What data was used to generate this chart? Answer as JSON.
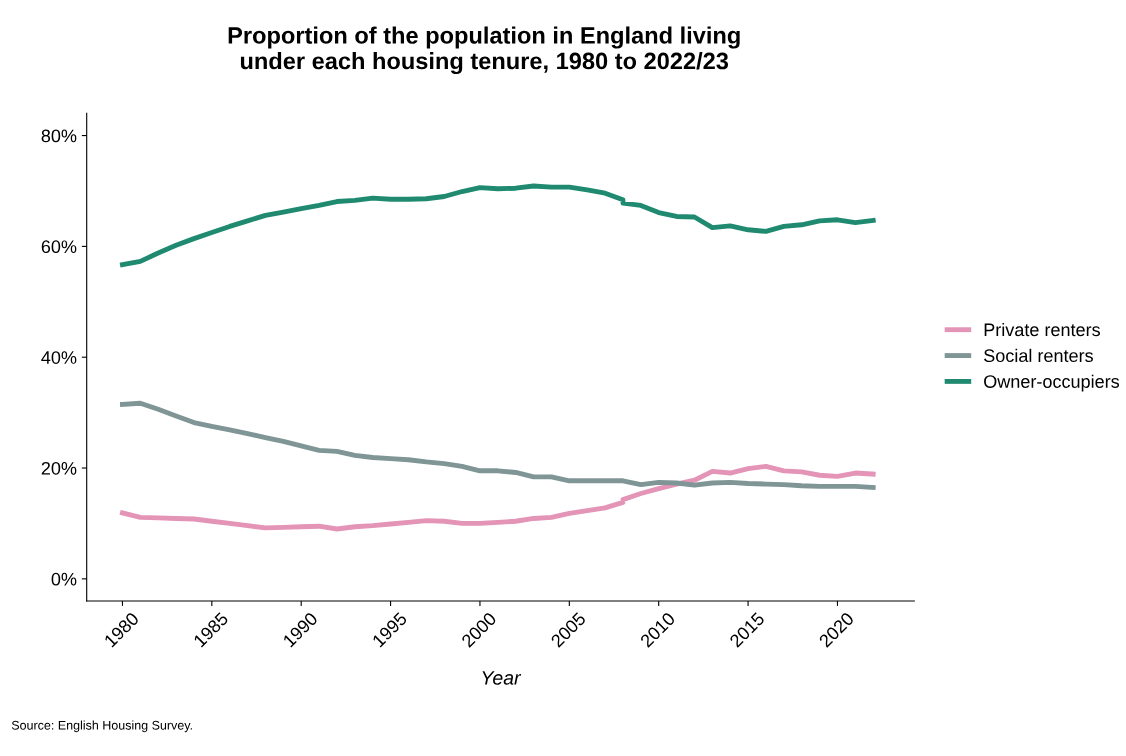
{
  "chart_data": {
    "type": "line",
    "title": "Proportion of the population in England living\nunder each housing tenure, 1980 to 2022/23",
    "xlabel": "Year",
    "x": [
      1980,
      1981,
      1982,
      1983,
      1984,
      1985,
      1986,
      1987,
      1988,
      1989,
      1990,
      1991,
      1992,
      1993,
      1994,
      1995,
      1996,
      1997,
      1998,
      1999,
      2000,
      2001,
      2002,
      2003,
      2004,
      2005,
      2006,
      2007,
      2008,
      2008,
      2009,
      2010,
      2011,
      2012,
      2013,
      2014,
      2015,
      2016,
      2017,
      2018,
      2019,
      2020,
      2021,
      2022
    ],
    "series": [
      {
        "name": "Private renters",
        "color": "#e394b7",
        "values": [
          11.9,
          11.1,
          11.0,
          10.9,
          10.8,
          10.4,
          10.0,
          9.6,
          9.2,
          9.3,
          9.4,
          9.5,
          9.0,
          9.4,
          9.6,
          9.9,
          10.2,
          10.5,
          10.4,
          10.0,
          10.0,
          10.2,
          10.4,
          10.9,
          11.1,
          11.8,
          12.3,
          12.8,
          13.8,
          14.3,
          15.4,
          16.3,
          17.1,
          17.8,
          19.4,
          19.1,
          19.9,
          20.3,
          19.5,
          19.3,
          18.7,
          18.5,
          19.1,
          18.9
        ]
      },
      {
        "name": "Social renters",
        "color": "#7f9596",
        "values": [
          31.5,
          31.7,
          30.6,
          29.4,
          28.2,
          27.5,
          26.9,
          26.2,
          25.5,
          24.8,
          24.0,
          23.2,
          23.0,
          22.3,
          21.9,
          21.7,
          21.5,
          21.1,
          20.8,
          20.3,
          19.5,
          19.5,
          19.2,
          18.4,
          18.4,
          17.7,
          17.7,
          17.7,
          17.7,
          17.7,
          17.0,
          17.4,
          17.3,
          16.9,
          17.3,
          17.4,
          17.2,
          17.1,
          17.0,
          16.8,
          16.7,
          16.7,
          16.7,
          16.5
        ]
      },
      {
        "name": "Owner-occupiers",
        "color": "#1f8a70",
        "values": [
          56.7,
          57.3,
          58.8,
          60.2,
          61.4,
          62.5,
          63.6,
          64.6,
          65.6,
          66.2,
          66.8,
          67.4,
          68.1,
          68.3,
          68.7,
          68.5,
          68.5,
          68.6,
          69.0,
          69.9,
          70.6,
          70.4,
          70.5,
          70.9,
          70.7,
          70.7,
          70.2,
          69.6,
          68.4,
          67.8,
          67.4,
          66.1,
          65.4,
          65.3,
          63.4,
          63.7,
          63.0,
          62.7,
          63.6,
          63.9,
          64.6,
          64.8,
          64.3,
          64.7
        ]
      }
    ],
    "xlim": [
      1978,
      2024.3
    ],
    "xticks": [
      1980,
      1985,
      1990,
      1995,
      2000,
      2005,
      2010,
      2015,
      2020
    ],
    "ylim": [
      -4,
      84
    ],
    "yticks": [
      {
        "value": 0,
        "label": "0%"
      },
      {
        "value": 20,
        "label": "20%"
      },
      {
        "value": 40,
        "label": "40%"
      },
      {
        "value": 60,
        "label": "60%"
      },
      {
        "value": 80,
        "label": "80%"
      }
    ],
    "grid": false,
    "legend": "right",
    "line_style": "solid",
    "marker": "none",
    "annotations": [
      "Source: English Housing Survey."
    ]
  }
}
